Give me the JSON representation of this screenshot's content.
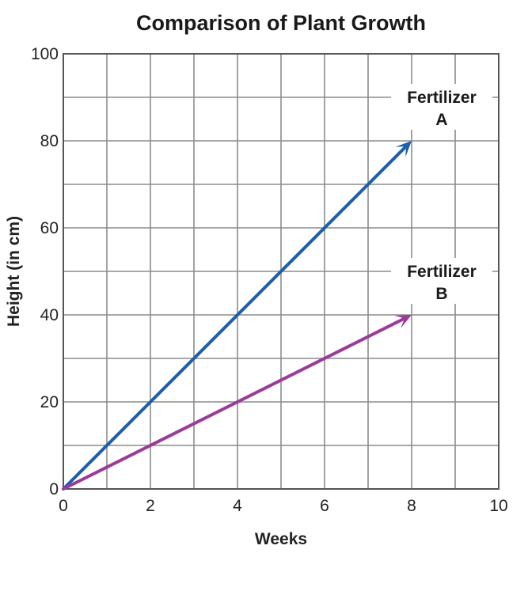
{
  "chart_data": {
    "type": "line",
    "title": "Comparison of Plant Growth",
    "xlabel": "Weeks",
    "ylabel": "Height (in cm)",
    "xlim": [
      0,
      10
    ],
    "ylim": [
      0,
      100
    ],
    "x_ticks": [
      0,
      2,
      4,
      6,
      8,
      10
    ],
    "y_ticks": [
      0,
      20,
      40,
      60,
      80,
      100
    ],
    "x_grid_step": 1,
    "y_grid_step": 10,
    "grid": true,
    "series": [
      {
        "name_lines": [
          "Fertilizer",
          "A"
        ],
        "color": "#1f5ea8",
        "x": [
          0,
          8
        ],
        "y": [
          0,
          80
        ],
        "end_marker": "arrow"
      },
      {
        "name_lines": [
          "Fertilizer",
          "B"
        ],
        "color": "#9b3a9b",
        "x": [
          0,
          8
        ],
        "y": [
          0,
          40
        ],
        "end_marker": "arrow"
      }
    ]
  }
}
